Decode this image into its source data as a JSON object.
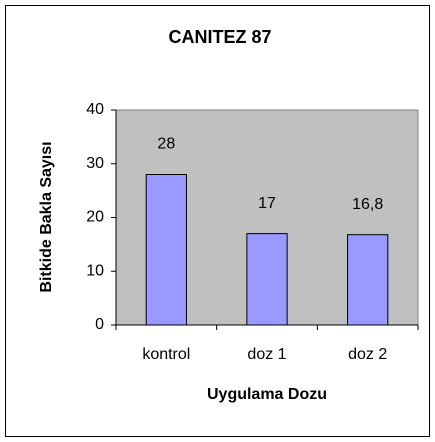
{
  "chart_data": {
    "type": "bar",
    "title": "CANITEZ 87",
    "x_label": "Uygulama Dozu",
    "y_label": "Bitkide Bakla Sayısı",
    "categories": [
      "kontrol",
      "doz 1",
      "doz 2"
    ],
    "values": [
      28,
      17,
      16.8
    ],
    "value_labels": [
      "28",
      "17",
      "16,8"
    ],
    "color": "#9999ff",
    "plot_background": "#c0c0c0",
    "ylim": [
      0,
      40
    ],
    "yticks": [
      0,
      10,
      20,
      30,
      40
    ],
    "grid": false
  }
}
